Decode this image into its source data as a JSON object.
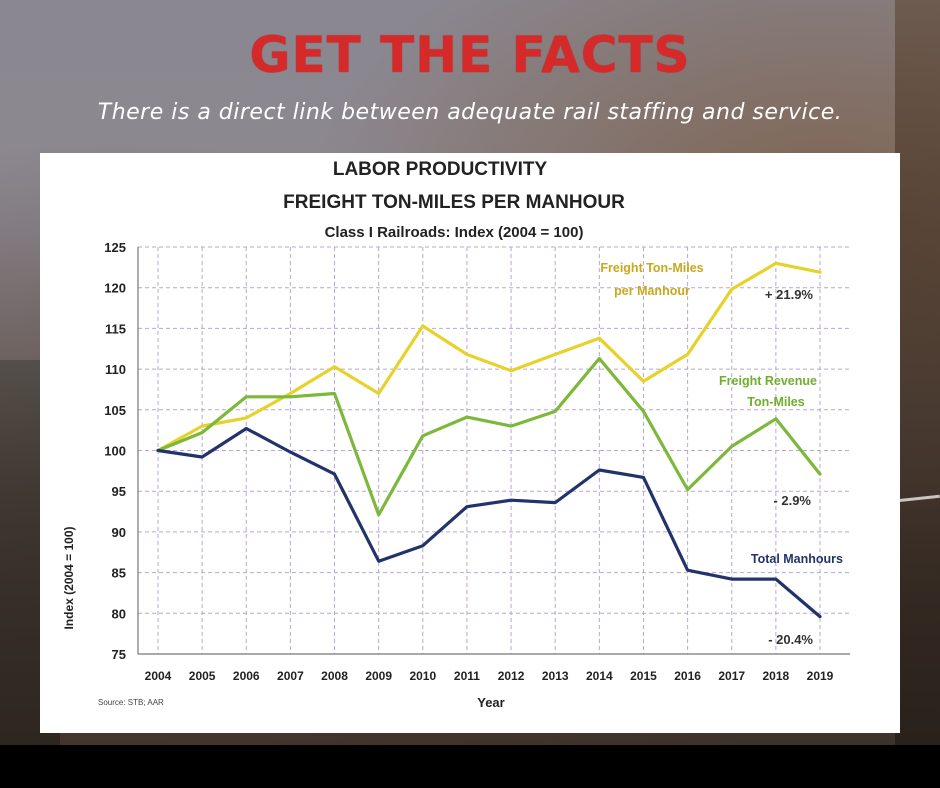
{
  "header": {
    "title": "GET THE FACTS",
    "subtitle": "There is a direct link between adequate rail staffing and service."
  },
  "colors": {
    "title_red": "#d62a2a",
    "yellow": "#e6d22a",
    "green": "#7cb83a",
    "navy": "#22336b",
    "grid": "#b9a7cf"
  },
  "chart_data": {
    "type": "line",
    "title": [
      "LABOR PRODUCTIVITY",
      "FREIGHT TON-MILES PER MANHOUR"
    ],
    "subtitle": "Class I Railroads: Index (2004 = 100)",
    "xlabel": "Year",
    "ylabel": "Index (2004 = 100)",
    "source": "Source: STB; AAR",
    "x": [
      "2004",
      "2005",
      "2006",
      "2007",
      "2008",
      "2009",
      "2010",
      "2011",
      "2012",
      "2013",
      "2014",
      "2015",
      "2016",
      "2017",
      "2018",
      "2019"
    ],
    "ylim": [
      75,
      125
    ],
    "yticks": [
      75,
      80,
      85,
      90,
      95,
      100,
      105,
      110,
      115,
      120,
      125
    ],
    "grid": true,
    "series": [
      {
        "name": "Freight Ton-Miles per Manhour",
        "label_lines": [
          "Freight Ton-Miles",
          "per Manhour"
        ],
        "change": "+ 21.9%",
        "color": "#e6d22a",
        "values": [
          100,
          103,
          104,
          107,
          110.3,
          107,
          115.3,
          111.8,
          109.8,
          111.8,
          113.8,
          108.5,
          111.8,
          119.8,
          123,
          121.9
        ]
      },
      {
        "name": "Freight Revenue Ton-Miles",
        "label_lines": [
          "Freight Revenue",
          "Ton-Miles"
        ],
        "change": "- 2.9%",
        "color": "#7cb83a",
        "values": [
          100,
          102.2,
          106.6,
          106.6,
          107,
          92.1,
          101.8,
          104.1,
          103,
          104.8,
          111.3,
          104.8,
          95.2,
          100.5,
          103.9,
          97.1
        ]
      },
      {
        "name": "Total Manhours",
        "label_lines": [
          "Total Manhours"
        ],
        "change": "- 20.4%",
        "color": "#22336b",
        "values": [
          100,
          99.2,
          102.7,
          99.8,
          97.1,
          86.4,
          88.3,
          93.1,
          93.9,
          93.6,
          97.6,
          96.7,
          85.3,
          84.2,
          84.2,
          79.6
        ]
      }
    ]
  }
}
